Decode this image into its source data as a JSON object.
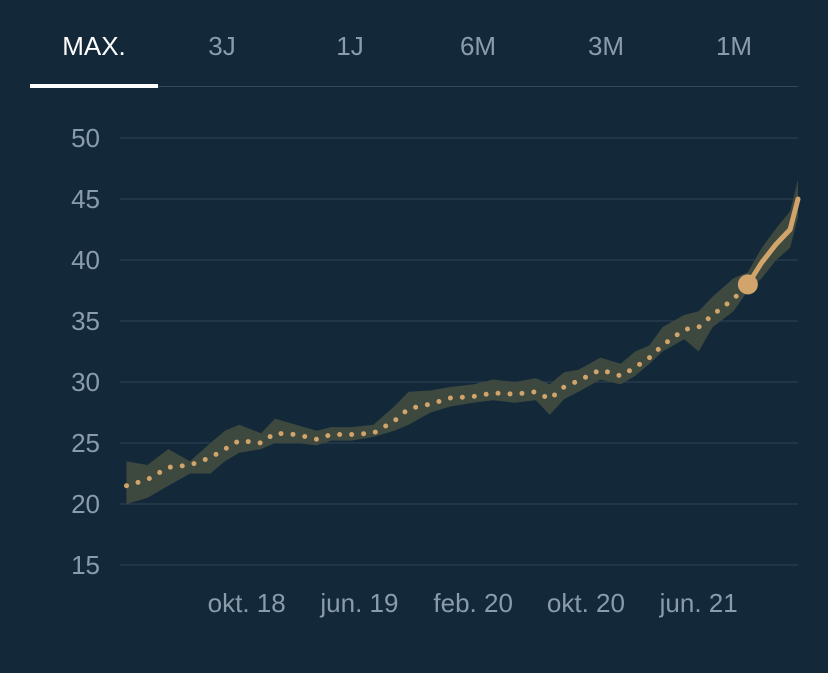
{
  "tabs": [
    {
      "label": "MAX.",
      "active": true
    },
    {
      "label": "3J",
      "active": false
    },
    {
      "label": "1J",
      "active": false
    },
    {
      "label": "6M",
      "active": false
    },
    {
      "label": "3M",
      "active": false
    },
    {
      "label": "1M",
      "active": false
    }
  ],
  "colors": {
    "background": "#13293a",
    "grid": "#2f4556",
    "tick_text": "#8a9cab",
    "band": "#3f4a3f",
    "line": "#d0a46a",
    "active_tab": "#ffffff"
  },
  "chart_data": {
    "type": "line",
    "title": "",
    "xlabel": "",
    "ylabel": "",
    "ylim": [
      15,
      50
    ],
    "yticks": [
      50,
      45,
      40,
      35,
      30,
      25,
      20,
      15
    ],
    "xticks": [
      {
        "label": "okt. 18",
        "date": "2018-10-01"
      },
      {
        "label": "jun. 19",
        "date": "2019-06-01"
      },
      {
        "label": "feb. 20",
        "date": "2020-02-01"
      },
      {
        "label": "okt. 20",
        "date": "2020-10-01"
      },
      {
        "label": "jun. 21",
        "date": "2021-06-01"
      }
    ],
    "grid": true,
    "series": [
      {
        "style": "dotted-then-solid",
        "points": [
          {
            "date": "2018-01-15",
            "y": 21.5
          },
          {
            "date": "2018-03-01",
            "y": 22.0
          },
          {
            "date": "2018-04-15",
            "y": 23.0
          },
          {
            "date": "2018-06-01",
            "y": 23.2
          },
          {
            "date": "2018-07-15",
            "y": 23.8
          },
          {
            "date": "2018-08-15",
            "y": 24.5
          },
          {
            "date": "2018-09-15",
            "y": 25.2
          },
          {
            "date": "2018-11-01",
            "y": 25.0
          },
          {
            "date": "2018-12-01",
            "y": 25.8
          },
          {
            "date": "2019-01-15",
            "y": 25.7
          },
          {
            "date": "2019-03-01",
            "y": 25.3
          },
          {
            "date": "2019-04-01",
            "y": 25.7
          },
          {
            "date": "2019-05-15",
            "y": 25.7
          },
          {
            "date": "2019-07-01",
            "y": 25.8
          },
          {
            "date": "2019-08-15",
            "y": 26.8
          },
          {
            "date": "2019-09-15",
            "y": 27.8
          },
          {
            "date": "2019-11-01",
            "y": 28.2
          },
          {
            "date": "2019-12-15",
            "y": 28.7
          },
          {
            "date": "2020-02-01",
            "y": 28.8
          },
          {
            "date": "2020-03-15",
            "y": 29.1
          },
          {
            "date": "2020-05-01",
            "y": 29.0
          },
          {
            "date": "2020-06-15",
            "y": 29.2
          },
          {
            "date": "2020-07-15",
            "y": 28.6
          },
          {
            "date": "2020-08-15",
            "y": 29.6
          },
          {
            "date": "2020-09-15",
            "y": 30.1
          },
          {
            "date": "2020-11-01",
            "y": 31.0
          },
          {
            "date": "2020-12-15",
            "y": 30.5
          },
          {
            "date": "2021-01-15",
            "y": 31.2
          },
          {
            "date": "2021-02-15",
            "y": 32.0
          },
          {
            "date": "2021-03-15",
            "y": 33.0
          },
          {
            "date": "2021-05-01",
            "y": 34.3
          },
          {
            "date": "2021-06-01",
            "y": 34.5
          },
          {
            "date": "2021-07-01",
            "y": 35.5
          },
          {
            "date": "2021-08-15",
            "y": 36.8
          },
          {
            "date": "2021-09-15",
            "y": 38.0
          },
          {
            "date": "2021-10-15",
            "y": 39.8
          },
          {
            "date": "2021-11-15",
            "y": 41.3
          },
          {
            "date": "2021-12-15",
            "y": 42.5
          },
          {
            "date": "2022-01-01",
            "y": 45.0
          }
        ],
        "highlight": {
          "date": "2021-09-15",
          "y": 38.0
        },
        "band_upper": [
          23.5,
          23.2,
          24.5,
          23.5,
          25.0,
          26.0,
          26.5,
          25.8,
          27.0,
          26.5,
          26.0,
          26.3,
          26.3,
          26.5,
          28.0,
          29.2,
          29.3,
          29.6,
          29.8,
          30.2,
          30.0,
          30.3,
          29.8,
          30.8,
          31.0,
          32.0,
          31.5,
          32.5,
          33.0,
          34.5,
          35.5,
          35.8,
          37.0,
          38.5,
          39.0,
          41.0,
          42.6,
          44.0,
          46.6
        ],
        "band_lower": [
          20.0,
          20.5,
          21.5,
          22.5,
          22.5,
          23.5,
          24.2,
          24.5,
          25.0,
          25.0,
          24.8,
          25.2,
          25.2,
          25.5,
          26.0,
          26.5,
          27.5,
          28.0,
          28.3,
          28.5,
          28.3,
          28.5,
          27.3,
          28.6,
          29.2,
          30.2,
          29.8,
          30.5,
          31.5,
          32.5,
          33.5,
          32.5,
          34.5,
          35.8,
          37.5,
          38.5,
          40.0,
          41.0,
          43.5
        ]
      }
    ]
  }
}
